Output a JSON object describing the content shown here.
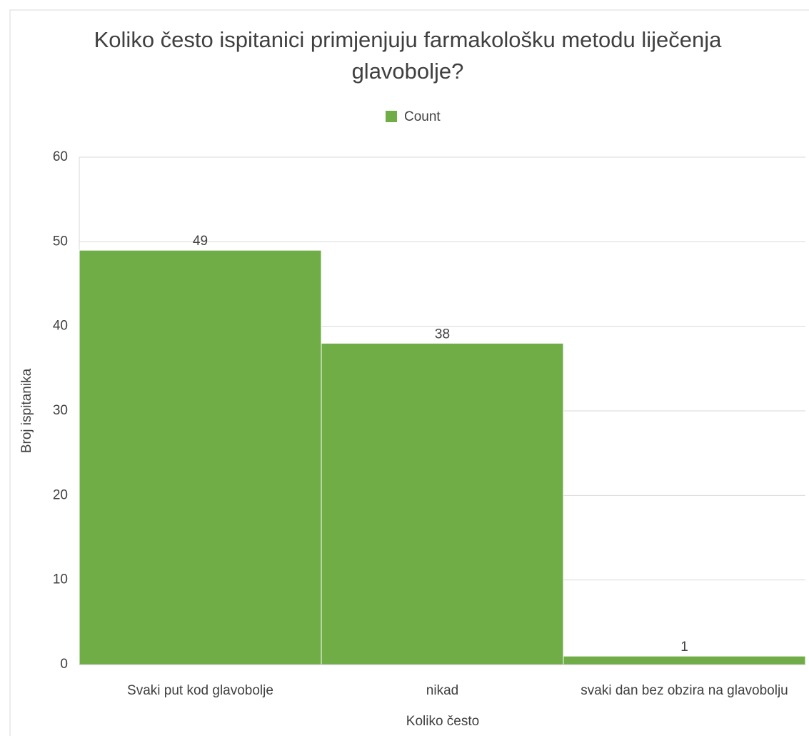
{
  "chart_data": {
    "type": "bar",
    "title": "Koliko često ispitanici primjenjuju farmakološku metodu liječenja glavobolje?",
    "x_label": "Koliko često",
    "y_label": "Broj ispitanika",
    "categories": [
      "Svaki put kod glavobolje",
      "nikad",
      "svaki dan bez obzira na glavobolju"
    ],
    "series": [
      {
        "name": "Count",
        "color": "#70ad47",
        "values": [
          49,
          38,
          1
        ]
      }
    ],
    "ylim": [
      0,
      60
    ],
    "yticks": [
      0,
      10,
      20,
      30,
      40,
      50,
      60
    ],
    "grid": true,
    "legend": "top"
  }
}
